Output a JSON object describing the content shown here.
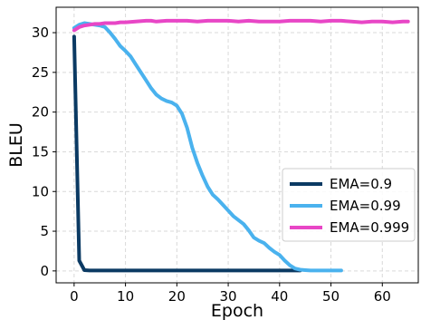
{
  "chart_data": {
    "type": "line",
    "title": "",
    "xlabel": "Epoch",
    "ylabel": "BLEU",
    "xlim": [
      -3.5,
      67
    ],
    "ylim": [
      -1.5,
      33.2
    ],
    "xticks": [
      0,
      10,
      20,
      30,
      40,
      50,
      60
    ],
    "yticks": [
      0,
      5,
      10,
      15,
      20,
      25,
      30
    ],
    "grid": true,
    "legend_position": "center-right",
    "series": [
      {
        "name": "EMA=0.9",
        "color": "#0b3a63",
        "x": [
          0,
          1,
          2,
          3,
          4,
          5,
          10,
          20,
          30,
          40,
          43,
          44
        ],
        "y": [
          29.5,
          1.3,
          0.1,
          0.05,
          0.05,
          0.05,
          0.05,
          0.05,
          0.05,
          0.05,
          0.05,
          0.05
        ]
      },
      {
        "name": "EMA=0.99",
        "color": "#4ab2ee",
        "x": [
          0,
          1,
          2,
          3,
          4,
          5,
          6,
          7,
          8,
          9,
          10,
          11,
          12,
          13,
          14,
          15,
          16,
          17,
          18,
          19,
          20,
          21,
          22,
          23,
          24,
          25,
          26,
          27,
          28,
          29,
          30,
          31,
          32,
          33,
          34,
          35,
          36,
          37,
          38,
          39,
          40,
          41,
          42,
          43,
          44,
          45,
          46,
          47,
          48,
          49,
          50,
          51,
          52
        ],
        "y": [
          30.6,
          31.0,
          31.2,
          31.1,
          31.0,
          30.9,
          30.7,
          30.0,
          29.2,
          28.3,
          27.7,
          27.0,
          26.0,
          25.0,
          24.0,
          23.0,
          22.2,
          21.7,
          21.4,
          21.2,
          20.8,
          19.8,
          18.0,
          15.5,
          13.6,
          12.0,
          10.6,
          9.6,
          9.0,
          8.3,
          7.6,
          6.9,
          6.4,
          5.9,
          5.1,
          4.2,
          3.8,
          3.5,
          2.9,
          2.4,
          2.0,
          1.3,
          0.7,
          0.3,
          0.15,
          0.1,
          0.05,
          0.05,
          0.05,
          0.05,
          0.05,
          0.05,
          0.05
        ]
      },
      {
        "name": "EMA=0.999",
        "color": "#e846c6",
        "x": [
          0,
          1,
          2,
          3,
          4,
          5,
          6,
          7,
          8,
          9,
          10,
          12,
          14,
          15,
          16,
          18,
          20,
          22,
          24,
          26,
          28,
          30,
          32,
          34,
          36,
          38,
          40,
          42,
          44,
          46,
          48,
          50,
          52,
          54,
          56,
          58,
          60,
          62,
          64,
          65
        ],
        "y": [
          30.3,
          30.7,
          30.9,
          31.0,
          31.1,
          31.1,
          31.2,
          31.2,
          31.2,
          31.3,
          31.3,
          31.4,
          31.5,
          31.5,
          31.4,
          31.5,
          31.5,
          31.5,
          31.4,
          31.5,
          31.5,
          31.5,
          31.4,
          31.5,
          31.4,
          31.4,
          31.4,
          31.5,
          31.5,
          31.5,
          31.4,
          31.5,
          31.5,
          31.4,
          31.3,
          31.4,
          31.4,
          31.3,
          31.4,
          31.4
        ]
      }
    ]
  }
}
